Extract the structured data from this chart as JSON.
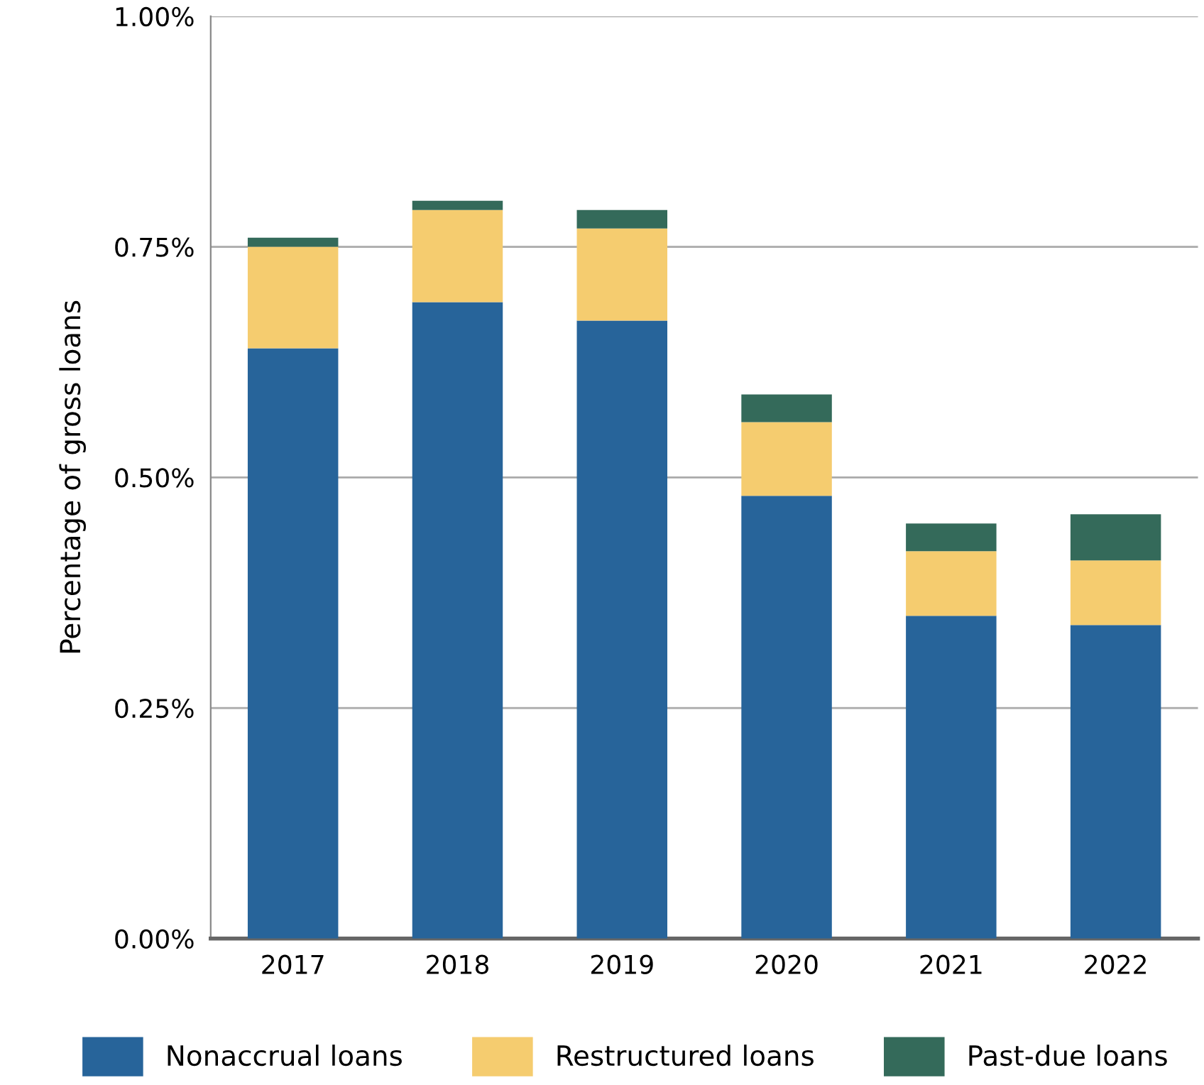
{
  "chart_data": {
    "type": "bar",
    "stacked": true,
    "ylabel": "Percentage of gross loans",
    "categories": [
      "2017",
      "2018",
      "2019",
      "2020",
      "2021",
      "2022"
    ],
    "series": [
      {
        "name": "Nonaccrual loans",
        "color": "#27649a",
        "values": [
          0.64,
          0.69,
          0.67,
          0.48,
          0.35,
          0.34
        ]
      },
      {
        "name": "Restructured loans",
        "color": "#f5cc6f",
        "values": [
          0.11,
          0.1,
          0.1,
          0.08,
          0.07,
          0.07
        ]
      },
      {
        "name": "Past-due loans",
        "color": "#346a5a",
        "values": [
          0.01,
          0.01,
          0.02,
          0.03,
          0.03,
          0.05
        ]
      }
    ],
    "ylim": [
      0,
      1
    ],
    "yticks": [
      {
        "value": 0,
        "label": "0.00%"
      },
      {
        "value": 0.25,
        "label": "0.25%"
      },
      {
        "value": 0.5,
        "label": "0.50%"
      },
      {
        "value": 0.75,
        "label": "0.75%"
      },
      {
        "value": 1,
        "label": "1.00%"
      }
    ],
    "grid": "y",
    "legend": "bottom"
  }
}
